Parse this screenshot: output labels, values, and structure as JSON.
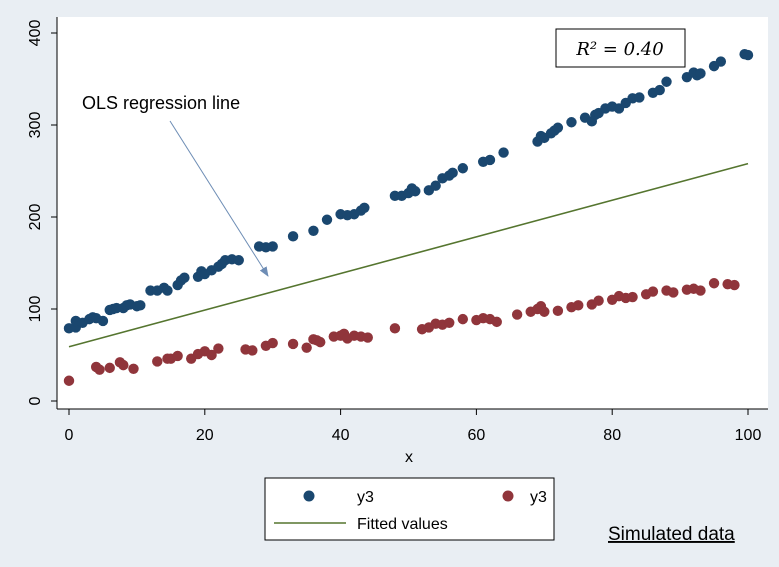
{
  "chart_data": {
    "type": "scatter",
    "xlabel": "x",
    "ylabel": "",
    "xlim": [
      0,
      100
    ],
    "ylim": [
      0,
      400
    ],
    "xticks": [
      0,
      20,
      40,
      60,
      80,
      100
    ],
    "yticks": [
      0,
      100,
      200,
      300,
      400
    ],
    "grid": false,
    "annotation": "OLS regression line",
    "r_squared_label": "R² = 0.40",
    "note": "Simulated data",
    "colors": {
      "series1": "#1a476f",
      "series2": "#90353b",
      "fit": "#55752f",
      "arrow": "#6e8db5"
    },
    "series": [
      {
        "name": "y3",
        "marker": "circle",
        "points": [
          [
            0,
            79
          ],
          [
            1,
            80
          ],
          [
            1,
            87
          ],
          [
            2,
            85
          ],
          [
            3,
            89
          ],
          [
            3.5,
            91
          ],
          [
            4,
            90
          ],
          [
            5,
            87
          ],
          [
            6,
            99
          ],
          [
            6.5,
            100
          ],
          [
            7,
            101
          ],
          [
            8,
            101
          ],
          [
            8.5,
            104
          ],
          [
            9,
            105
          ],
          [
            10,
            103
          ],
          [
            10.5,
            104
          ],
          [
            12,
            120
          ],
          [
            13,
            120
          ],
          [
            14,
            123
          ],
          [
            14.5,
            120
          ],
          [
            16,
            126
          ],
          [
            16.5,
            131
          ],
          [
            17,
            134
          ],
          [
            19,
            135
          ],
          [
            19.5,
            141
          ],
          [
            20,
            138
          ],
          [
            21,
            142
          ],
          [
            22,
            146
          ],
          [
            22.5,
            149
          ],
          [
            23,
            153
          ],
          [
            24,
            154
          ],
          [
            25,
            153
          ],
          [
            28,
            168
          ],
          [
            29,
            167
          ],
          [
            30,
            168
          ],
          [
            33,
            179
          ],
          [
            36,
            185
          ],
          [
            38,
            197
          ],
          [
            40,
            203
          ],
          [
            41,
            202
          ],
          [
            42,
            203
          ],
          [
            43,
            207
          ],
          [
            43.5,
            210
          ],
          [
            48,
            223
          ],
          [
            49,
            223
          ],
          [
            50,
            226
          ],
          [
            50.5,
            231
          ],
          [
            51,
            228
          ],
          [
            53,
            229
          ],
          [
            54,
            234
          ],
          [
            55,
            242
          ],
          [
            56,
            245
          ],
          [
            56.5,
            248
          ],
          [
            58,
            253
          ],
          [
            61,
            260
          ],
          [
            62,
            262
          ],
          [
            64,
            270
          ],
          [
            69,
            282
          ],
          [
            69.5,
            288
          ],
          [
            70,
            286
          ],
          [
            71,
            291
          ],
          [
            71.5,
            294
          ],
          [
            72,
            297
          ],
          [
            74,
            303
          ],
          [
            76,
            308
          ],
          [
            77,
            304
          ],
          [
            77.5,
            311
          ],
          [
            78,
            313
          ],
          [
            79,
            318
          ],
          [
            80,
            320
          ],
          [
            81,
            318
          ],
          [
            82,
            324
          ],
          [
            83,
            329
          ],
          [
            84,
            330
          ],
          [
            86,
            335
          ],
          [
            87,
            338
          ],
          [
            88,
            347
          ],
          [
            91,
            352
          ],
          [
            92,
            357
          ],
          [
            92.5,
            354
          ],
          [
            93,
            356
          ],
          [
            95,
            364
          ],
          [
            96,
            369
          ],
          [
            99.5,
            377
          ],
          [
            100,
            376
          ]
        ]
      },
      {
        "name": "y3",
        "marker": "circle",
        "points": [
          [
            0,
            22
          ],
          [
            4,
            37
          ],
          [
            4.5,
            34
          ],
          [
            6,
            36
          ],
          [
            7.5,
            42
          ],
          [
            8,
            39
          ],
          [
            9.5,
            35
          ],
          [
            13,
            43
          ],
          [
            14.5,
            46
          ],
          [
            15,
            46
          ],
          [
            16,
            49
          ],
          [
            18,
            46
          ],
          [
            19,
            51
          ],
          [
            20,
            54
          ],
          [
            21,
            50
          ],
          [
            22,
            57
          ],
          [
            26,
            56
          ],
          [
            27,
            55
          ],
          [
            29,
            60
          ],
          [
            30,
            63
          ],
          [
            33,
            62
          ],
          [
            35,
            58
          ],
          [
            36,
            67
          ],
          [
            36.5,
            66
          ],
          [
            37,
            64
          ],
          [
            39,
            70
          ],
          [
            40,
            71
          ],
          [
            40.5,
            73
          ],
          [
            41,
            68
          ],
          [
            42,
            71
          ],
          [
            43,
            70
          ],
          [
            44,
            69
          ],
          [
            48,
            79
          ],
          [
            52,
            78
          ],
          [
            53,
            80
          ],
          [
            54,
            84
          ],
          [
            55,
            83
          ],
          [
            56,
            85
          ],
          [
            58,
            89
          ],
          [
            60,
            88
          ],
          [
            61,
            90
          ],
          [
            62,
            89
          ],
          [
            63,
            86
          ],
          [
            66,
            94
          ],
          [
            68,
            97
          ],
          [
            69,
            100
          ],
          [
            69.5,
            103
          ],
          [
            70,
            97
          ],
          [
            72,
            98
          ],
          [
            74,
            102
          ],
          [
            75,
            104
          ],
          [
            77,
            105
          ],
          [
            78,
            109
          ],
          [
            80,
            110
          ],
          [
            81,
            114
          ],
          [
            82,
            112
          ],
          [
            83,
            113
          ],
          [
            85,
            116
          ],
          [
            86,
            119
          ],
          [
            88,
            120
          ],
          [
            89,
            118
          ],
          [
            91,
            121
          ],
          [
            92,
            122
          ],
          [
            93,
            120
          ],
          [
            95,
            128
          ],
          [
            97,
            127
          ],
          [
            98,
            126
          ]
        ]
      }
    ],
    "fit": {
      "name": "Fitted values",
      "x": [
        0,
        100
      ],
      "y": [
        59,
        258
      ]
    }
  }
}
